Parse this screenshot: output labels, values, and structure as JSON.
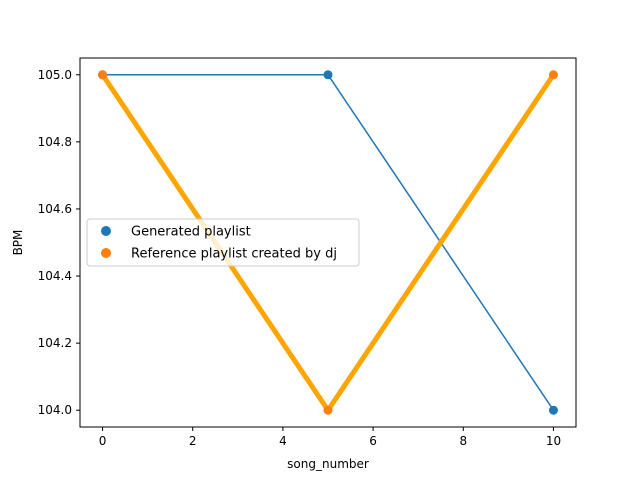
{
  "chart_data": {
    "type": "line",
    "title": "",
    "xlabel": "song_number",
    "ylabel": "BPM",
    "xlim": [
      -0.5,
      10.5
    ],
    "ylim": [
      103.95,
      105.05
    ],
    "x_ticks": [
      0,
      2,
      4,
      6,
      8,
      10
    ],
    "y_ticks": [
      104.0,
      104.2,
      104.4,
      104.6,
      104.8,
      105.0
    ],
    "grid": false,
    "legend_position": "center-left",
    "series": [
      {
        "name": "Generated playlist",
        "x": [
          0,
          5,
          10
        ],
        "y": [
          105.0,
          105.0,
          104.0
        ],
        "marker_color": "#1f77b4",
        "line_color": "#1f77b4"
      },
      {
        "name": "Reference playlist created by dj",
        "x": [
          0,
          5,
          10
        ],
        "y": [
          105.0,
          104.0,
          105.0
        ],
        "marker_color": "#ff7f0e",
        "line_color": "#ffa500"
      }
    ]
  }
}
